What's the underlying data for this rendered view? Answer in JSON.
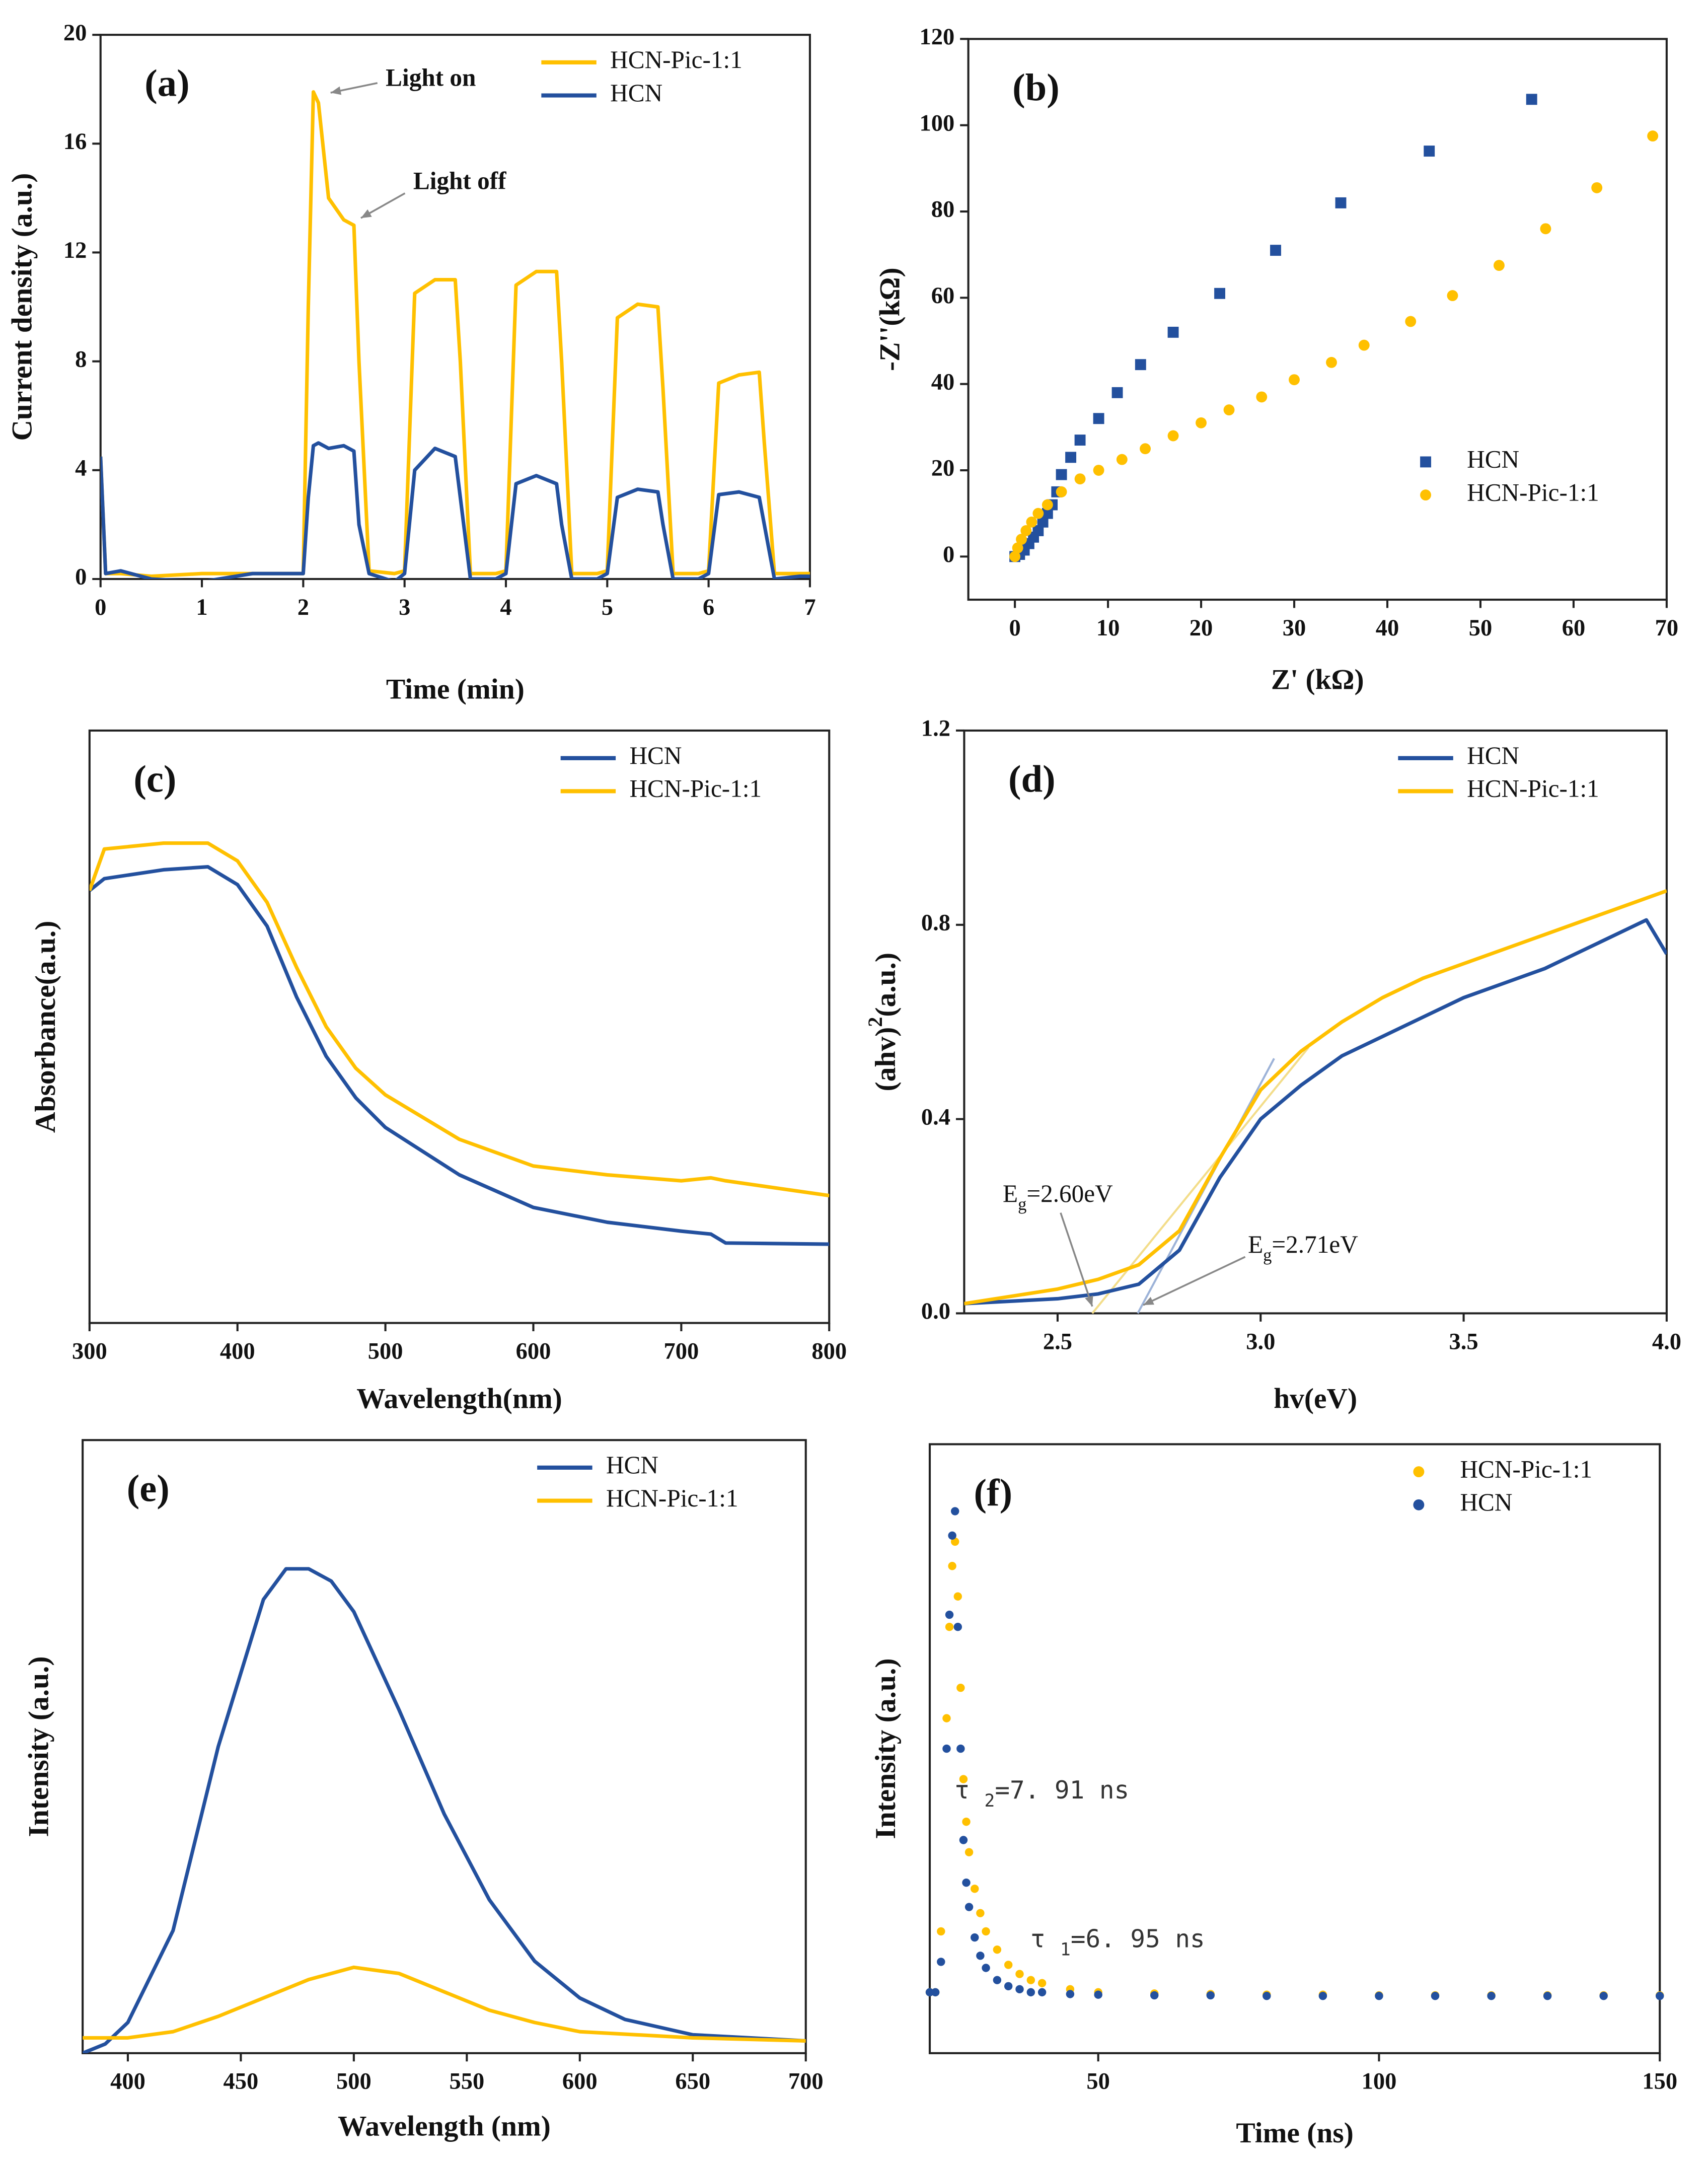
{
  "chart_data": [
    {
      "type": "line",
      "panel_label": "(a)",
      "x_label": "Time (min)",
      "y_label": "Current density (a.u.)",
      "xlim": [
        0,
        7
      ],
      "ylim": [
        0,
        20
      ],
      "xticks": [
        0,
        1,
        2,
        3,
        4,
        5,
        6,
        7
      ],
      "yticks": [
        0,
        4,
        8,
        12,
        16,
        20
      ],
      "legend": "upper right",
      "annotations": [
        {
          "parts": [
            {
              "text": "Light on"
            }
          ]
        },
        {
          "parts": [
            {
              "text": "Light off"
            }
          ]
        }
      ],
      "series": [
        {
          "name": "HCN-Pic-1:1",
          "color": "#ffc000",
          "x": [
            0,
            0.05,
            0.2,
            0.5,
            1,
            1.5,
            2.0,
            2.05,
            2.1,
            2.15,
            2.25,
            2.4,
            2.5,
            2.55,
            2.65,
            2.9,
            3.0,
            3.1,
            3.3,
            3.5,
            3.55,
            3.65,
            3.9,
            4.0,
            4.1,
            4.3,
            4.5,
            4.55,
            4.65,
            4.9,
            5.0,
            5.1,
            5.3,
            5.5,
            5.55,
            5.65,
            5.9,
            6.0,
            6.1,
            6.3,
            6.5,
            6.55,
            6.65,
            6.9,
            7.0
          ],
          "values": [
            4.5,
            0.2,
            0.2,
            0.1,
            0.2,
            0.2,
            0.2,
            10,
            17.9,
            17.5,
            14,
            13.2,
            13,
            8,
            0.3,
            0.2,
            0.3,
            10.5,
            11,
            11,
            8,
            0.2,
            0.2,
            0.3,
            10.8,
            11.3,
            11.3,
            8,
            0.2,
            0.2,
            0.3,
            9.6,
            10.1,
            10,
            7,
            0.2,
            0.2,
            0.3,
            7.2,
            7.5,
            7.6,
            5,
            0.2,
            0.2,
            0.2
          ]
        },
        {
          "name": "HCN",
          "color": "#23509e",
          "x": [
            0,
            0.05,
            0.2,
            0.5,
            1,
            1.5,
            2.0,
            2.05,
            2.1,
            2.15,
            2.25,
            2.4,
            2.5,
            2.55,
            2.65,
            2.9,
            3.0,
            3.1,
            3.3,
            3.5,
            3.55,
            3.65,
            3.9,
            4.0,
            4.1,
            4.3,
            4.5,
            4.55,
            4.65,
            4.9,
            5.0,
            5.1,
            5.3,
            5.5,
            5.55,
            5.65,
            5.9,
            6.0,
            6.1,
            6.3,
            6.5,
            6.55,
            6.65,
            6.9,
            7.0
          ],
          "values": [
            4.5,
            0.2,
            0.3,
            0,
            -0.1,
            0.2,
            0.2,
            3,
            4.9,
            5,
            4.8,
            4.9,
            4.7,
            2,
            0.2,
            -0.1,
            0.2,
            4,
            4.8,
            4.5,
            3,
            0,
            0,
            0.2,
            3.5,
            3.8,
            3.5,
            2,
            0,
            0,
            0.2,
            3,
            3.3,
            3.2,
            2,
            0,
            0,
            0.2,
            3.1,
            3.2,
            3,
            2,
            0,
            0.1,
            0.1
          ]
        }
      ]
    },
    {
      "type": "scatter",
      "panel_label": "(b)",
      "x_label": "Z' (kΩ)",
      "y_label": "-Z''(kΩ)",
      "xlim": [
        -5,
        70
      ],
      "ylim": [
        -10,
        120
      ],
      "xticks": [
        0,
        10,
        20,
        30,
        40,
        50,
        60,
        70
      ],
      "yticks": [
        0,
        20,
        40,
        60,
        80,
        100,
        120
      ],
      "legend": "lower right",
      "series": [
        {
          "name": "HCN",
          "color": "#23509e",
          "marker": "square",
          "x": [
            0,
            0.5,
            1,
            1.5,
            2,
            2.5,
            3,
            3.5,
            4,
            4.5,
            5,
            6,
            7,
            9,
            11,
            13.5,
            17,
            22,
            28,
            35,
            44.5,
            55.5
          ],
          "values": [
            0,
            0.5,
            1.5,
            3,
            4.5,
            6,
            8,
            10,
            12,
            15,
            19,
            23,
            27,
            32,
            38,
            44.5,
            52,
            61,
            71,
            82,
            94,
            106
          ]
        },
        {
          "name": "HCN-Pic-1:1",
          "color": "#ffc000",
          "marker": "circle",
          "x": [
            0,
            0.3,
            0.7,
            1.2,
            1.8,
            2.5,
            3.5,
            5,
            7,
            9,
            11.5,
            14,
            17,
            20,
            23,
            26.5,
            30,
            34,
            37.5,
            42.5,
            47,
            52,
            57,
            62.5,
            68.5
          ],
          "values": [
            0,
            2,
            4,
            6,
            8,
            10,
            12,
            15,
            18,
            20,
            22.5,
            25,
            28,
            31,
            34,
            37,
            41,
            45,
            49,
            54.5,
            60.5,
            67.5,
            76,
            85.5,
            97.5
          ]
        }
      ]
    },
    {
      "type": "line",
      "panel_label": "(c)",
      "x_label": "Wavelength(nm)",
      "y_label": "Absorbance(a.u.)",
      "xlim": [
        300,
        800
      ],
      "ylim": [
        0,
        1
      ],
      "xticks": [
        300,
        400,
        500,
        600,
        700,
        800
      ],
      "legend": "upper right",
      "series": [
        {
          "name": "HCN",
          "color": "#23509e",
          "x": [
            300,
            310,
            350,
            380,
            400,
            420,
            440,
            460,
            480,
            500,
            550,
            600,
            650,
            700,
            720,
            730,
            800
          ],
          "values": [
            0.73,
            0.75,
            0.765,
            0.77,
            0.74,
            0.67,
            0.55,
            0.45,
            0.38,
            0.33,
            0.25,
            0.195,
            0.17,
            0.155,
            0.15,
            0.135,
            0.133
          ]
        },
        {
          "name": "HCN-Pic-1:1",
          "color": "#ffc000",
          "x": [
            300,
            310,
            350,
            380,
            400,
            420,
            440,
            460,
            480,
            500,
            550,
            600,
            650,
            700,
            720,
            730,
            800
          ],
          "values": [
            0.73,
            0.8,
            0.81,
            0.81,
            0.78,
            0.71,
            0.6,
            0.5,
            0.43,
            0.385,
            0.31,
            0.265,
            0.25,
            0.24,
            0.245,
            0.24,
            0.215
          ]
        }
      ]
    },
    {
      "type": "line",
      "panel_label": "(d)",
      "x_label": "hv(eV)",
      "y_label": {
        "parts": [
          {
            "text": "(ahv)"
          },
          {
            "text": "2",
            "shift": "super"
          },
          {
            "text": "(a.u.)"
          }
        ]
      },
      "xlim": [
        2.27,
        4.0
      ],
      "ylim": [
        0,
        1.2
      ],
      "xticks": [
        2.5,
        {
          "value": 3.0,
          "label": "3.0"
        },
        3.5,
        {
          "value": 4.0,
          "label": "4.0"
        }
      ],
      "yticks": [
        {
          "value": 0,
          "label": "0.0"
        },
        0.4,
        0.8,
        1.2
      ],
      "legend": "upper right",
      "annotations": [
        {
          "parts": [
            {
              "text": "E"
            },
            {
              "text": "g",
              "shift": "sub"
            },
            {
              "text": "=2.60eV"
            }
          ]
        },
        {
          "parts": [
            {
              "text": "E"
            },
            {
              "text": "g",
              "shift": "sub"
            },
            {
              "text": "=2.71eV"
            }
          ]
        }
      ],
      "series": [
        {
          "name": "HCN",
          "color": "#23509e",
          "x": [
            2.27,
            2.5,
            2.6,
            2.7,
            2.8,
            2.9,
            3.0,
            3.1,
            3.2,
            3.3,
            3.4,
            3.5,
            3.6,
            3.7,
            3.8,
            3.9,
            3.95,
            4.0
          ],
          "values": [
            0.02,
            0.03,
            0.04,
            0.06,
            0.13,
            0.28,
            0.4,
            0.47,
            0.53,
            0.57,
            0.61,
            0.65,
            0.68,
            0.71,
            0.75,
            0.79,
            0.81,
            0.74
          ]
        },
        {
          "name": "HCN-Pic-1:1",
          "color": "#ffc000",
          "x": [
            2.27,
            2.5,
            2.6,
            2.7,
            2.8,
            2.9,
            3.0,
            3.1,
            3.2,
            3.3,
            3.4,
            3.5,
            3.6,
            3.7,
            3.8,
            3.9,
            4.0
          ],
          "values": [
            0.02,
            0.05,
            0.07,
            0.1,
            0.17,
            0.32,
            0.46,
            0.54,
            0.6,
            0.65,
            0.69,
            0.72,
            0.75,
            0.78,
            0.81,
            0.84,
            0.87
          ]
        }
      ]
    },
    {
      "type": "line",
      "panel_label": "(e)",
      "x_label": "Wavelength (nm)",
      "y_label": "Intensity (a.u.)",
      "xlim": [
        380,
        700
      ],
      "ylim": [
        0,
        1
      ],
      "xticks": [
        400,
        450,
        500,
        550,
        600,
        650,
        700
      ],
      "legend": "upper right",
      "series": [
        {
          "name": "HCN",
          "color": "#23509e",
          "x": [
            380,
            390,
            400,
            420,
            440,
            460,
            470,
            480,
            490,
            500,
            520,
            540,
            560,
            580,
            600,
            620,
            650,
            700
          ],
          "values": [
            0.0,
            0.015,
            0.05,
            0.2,
            0.5,
            0.74,
            0.79,
            0.79,
            0.77,
            0.72,
            0.56,
            0.39,
            0.25,
            0.15,
            0.09,
            0.055,
            0.03,
            0.02
          ]
        },
        {
          "name": "HCN-Pic-1:1",
          "color": "#ffc000",
          "x": [
            380,
            400,
            420,
            440,
            460,
            480,
            500,
            520,
            540,
            560,
            580,
            600,
            650,
            700
          ],
          "values": [
            0.025,
            0.025,
            0.035,
            0.06,
            0.09,
            0.12,
            0.14,
            0.13,
            0.1,
            0.07,
            0.05,
            0.035,
            0.025,
            0.02
          ]
        }
      ]
    },
    {
      "type": "scatter",
      "panel_label": "(f)",
      "x_label": "Time (ns)",
      "y_label": "Intensity (a.u.)",
      "xlim": [
        20,
        150
      ],
      "ylim": [
        0,
        1
      ],
      "xticks": [
        50,
        100,
        150
      ],
      "legend": "upper right",
      "annotations": [
        {
          "parts": [
            {
              "text": "τ "
            },
            {
              "text": "2",
              "shift": "sub"
            },
            {
              "text": "=7. 91  ns"
            }
          ]
        },
        {
          "parts": [
            {
              "text": "τ "
            },
            {
              "text": "1",
              "shift": "sub"
            },
            {
              "text": "=6. 95  ns"
            }
          ]
        }
      ],
      "series": [
        {
          "name": "HCN-Pic-1:1",
          "color": "#ffc000",
          "marker": "circle",
          "x": [
            20,
            21,
            22,
            23,
            23.5,
            24,
            24.5,
            25,
            25.5,
            26,
            26.5,
            27,
            28,
            29,
            30,
            32,
            34,
            36,
            38,
            40,
            45,
            50,
            60,
            70,
            80,
            90,
            100,
            110,
            120,
            130,
            140,
            150
          ],
          "values": [
            0.1,
            0.1,
            0.2,
            0.55,
            0.7,
            0.8,
            0.84,
            0.75,
            0.6,
            0.45,
            0.38,
            0.33,
            0.27,
            0.23,
            0.2,
            0.17,
            0.145,
            0.13,
            0.12,
            0.115,
            0.105,
            0.1,
            0.098,
            0.097,
            0.096,
            0.096,
            0.095,
            0.095,
            0.095,
            0.095,
            0.095,
            0.095
          ]
        },
        {
          "name": "HCN",
          "color": "#23509e",
          "marker": "circle",
          "x": [
            20,
            21,
            22,
            23,
            23.5,
            24,
            24.5,
            25,
            25.5,
            26,
            26.5,
            27,
            28,
            29,
            30,
            32,
            34,
            36,
            38,
            40,
            45,
            50,
            60,
            70,
            80,
            90,
            100,
            110,
            120,
            130,
            140,
            150
          ],
          "values": [
            0.1,
            0.1,
            0.15,
            0.5,
            0.72,
            0.85,
            0.89,
            0.7,
            0.5,
            0.35,
            0.28,
            0.24,
            0.19,
            0.16,
            0.14,
            0.12,
            0.11,
            0.105,
            0.1,
            0.1,
            0.097,
            0.096,
            0.095,
            0.095,
            0.094,
            0.094,
            0.094,
            0.094,
            0.094,
            0.094,
            0.094,
            0.094
          ]
        }
      ]
    }
  ]
}
